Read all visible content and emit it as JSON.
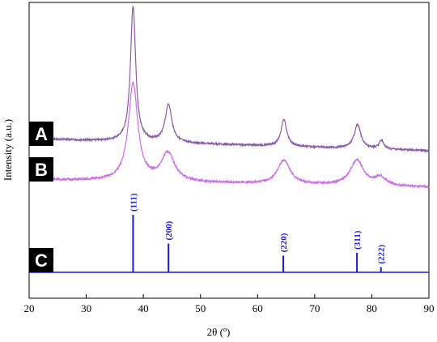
{
  "chart_data": {
    "type": "line",
    "xlabel": "2θ (º)",
    "ylabel": "Intensity (a.u.)",
    "xlim": [
      20,
      90
    ],
    "x_ticks": [
      "20",
      "30",
      "40",
      "50",
      "60",
      "70",
      "80",
      "90"
    ],
    "y_ticks_shown": false,
    "colors": {
      "A": "#8a5ba8",
      "B": "#cc6ee6",
      "C": "#1a1adc",
      "axis": "#000000"
    },
    "series": [
      {
        "name": "A",
        "peaks": [
          {
            "x": 38.2,
            "height": 0.96,
            "width": 0.55
          },
          {
            "x": 44.4,
            "height": 0.27,
            "width": 0.7
          },
          {
            "x": 64.6,
            "height": 0.19,
            "width": 0.6
          },
          {
            "x": 77.5,
            "height": 0.17,
            "width": 0.7
          },
          {
            "x": 81.7,
            "height": 0.06,
            "width": 0.5
          }
        ],
        "baseline_start": 0.085,
        "baseline_end": 0.0
      },
      {
        "name": "B",
        "peaks": [
          {
            "x": 38.2,
            "height": 0.69,
            "width": 1.0
          },
          {
            "x": 44.3,
            "height": 0.2,
            "width": 1.4
          },
          {
            "x": 64.6,
            "height": 0.17,
            "width": 1.3
          },
          {
            "x": 77.4,
            "height": 0.18,
            "width": 1.4
          },
          {
            "x": 81.5,
            "height": 0.06,
            "width": 1.1
          }
        ],
        "baseline_start": 0.055,
        "baseline_end": 0.0
      },
      {
        "name": "C",
        "sticks": [
          {
            "x": 38.2,
            "label": "(111)",
            "height": 1.0
          },
          {
            "x": 44.4,
            "label": "(200)",
            "height": 0.5
          },
          {
            "x": 64.5,
            "label": "(220)",
            "height": 0.29
          },
          {
            "x": 77.4,
            "label": "(311)",
            "height": 0.34
          },
          {
            "x": 81.6,
            "label": "(222)",
            "height": 0.09
          }
        ]
      }
    ]
  }
}
